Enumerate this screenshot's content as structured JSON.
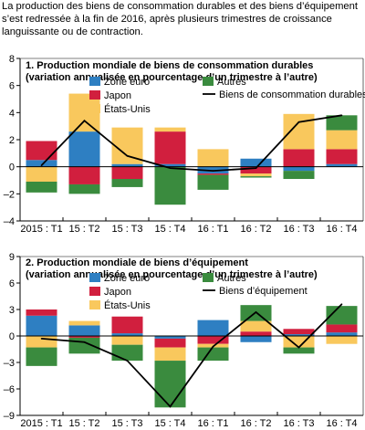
{
  "caption": "La production des biens de consommation durables et des biens d’équipement s’est redressée à la fin de 2016, après plusieurs trimestres de croissance languissante ou de contraction.",
  "colors": {
    "euro": "#2e7fc2",
    "japon": "#d11f3e",
    "usa": "#f9c85d",
    "autres": "#3a8b3e",
    "line": "#000000"
  },
  "chart_data": [
    {
      "type": "bar",
      "stacked": true,
      "title": "1. Production mondiale de biens de consommation durables",
      "subtitle": "(variation annualisée en pourcentage d’un trimestre à l’autre)",
      "categories": [
        "2015 : T1",
        "15 : T2",
        "15 : T3",
        "15 : T4",
        "16 : T1",
        "16 : T2",
        "16 : T3",
        "16 : T4"
      ],
      "ylim": [
        -4,
        8
      ],
      "yticks": [
        -4,
        -2,
        0,
        2,
        4,
        6,
        8
      ],
      "legend": [
        "Zone euro",
        "Japon",
        "États-Unis",
        "Autres",
        "Biens de consommation durables"
      ],
      "series": [
        {
          "name": "Zone euro",
          "key": "euro",
          "values": [
            0.5,
            2.6,
            0.2,
            0.2,
            -0.5,
            0.6,
            -0.3,
            0.2
          ]
        },
        {
          "name": "Japon",
          "key": "japon",
          "values": [
            1.4,
            -1.3,
            -0.9,
            2.4,
            -0.1,
            -0.5,
            1.3,
            1.1
          ]
        },
        {
          "name": "États-Unis",
          "key": "usa",
          "values": [
            -1.1,
            2.8,
            2.7,
            0.3,
            1.3,
            -0.2,
            2.6,
            1.4
          ]
        },
        {
          "name": "Autres",
          "key": "autres",
          "values": [
            -0.8,
            -0.7,
            -0.6,
            -2.8,
            -1.1,
            -0.1,
            -0.6,
            1.1
          ]
        }
      ],
      "line": {
        "name": "Biens de consommation durables",
        "values": [
          0.1,
          3.4,
          0.8,
          -0.1,
          -0.3,
          -0.1,
          3.3,
          3.8
        ]
      }
    },
    {
      "type": "bar",
      "stacked": true,
      "title": "2. Production mondiale de biens d’équipement",
      "subtitle": "(variation annualisée en pourcentage d’un trimestre à l’autre)",
      "categories": [
        "2015 : T1",
        "15 : T2",
        "15 : T3",
        "15 : T4",
        "16 : T1",
        "16 : T2",
        "16 : T3",
        "16 : T4"
      ],
      "ylim": [
        -9,
        9
      ],
      "yticks": [
        -9,
        -6,
        -3,
        0,
        3,
        6,
        9
      ],
      "legend": [
        "Zone euro",
        "Japon",
        "États-Unis",
        "Autres",
        "Biens d’équipement"
      ],
      "series": [
        {
          "name": "Zone euro",
          "key": "euro",
          "values": [
            2.3,
            1.2,
            0.3,
            -0.3,
            1.8,
            -0.7,
            0.2,
            0.4
          ]
        },
        {
          "name": "Japon",
          "key": "japon",
          "values": [
            0.7,
            -0.2,
            1.9,
            -1.0,
            -0.9,
            0.5,
            0.6,
            0.9
          ]
        },
        {
          "name": "États-Unis",
          "key": "usa",
          "values": [
            -1.3,
            0.5,
            -1.0,
            -1.5,
            -0.4,
            1.2,
            -1.3,
            -0.9
          ]
        },
        {
          "name": "Autres",
          "key": "autres",
          "values": [
            -2.1,
            -1.8,
            -1.8,
            -5.3,
            -1.5,
            1.8,
            -0.7,
            2.1
          ]
        }
      ],
      "line": {
        "name": "Biens d’équipement",
        "values": [
          -0.3,
          -0.7,
          -2.8,
          -8.0,
          -1.2,
          2.7,
          -1.3,
          3.6
        ]
      }
    }
  ]
}
